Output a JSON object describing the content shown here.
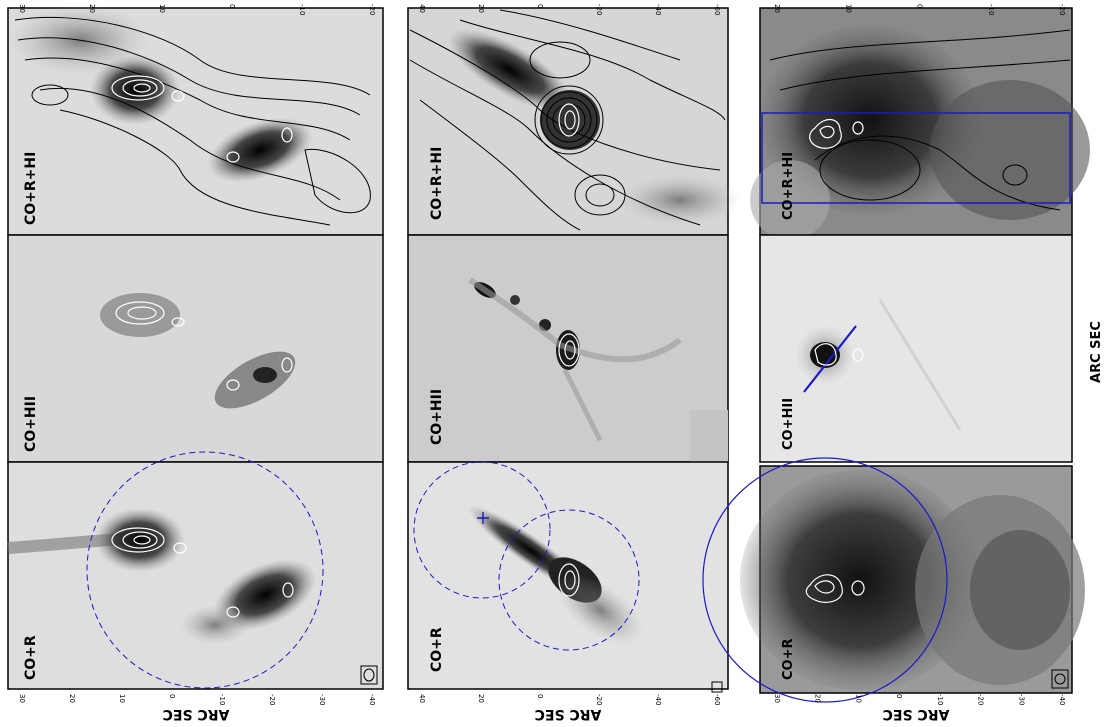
{
  "axis_label_bottom": "ARC SEC",
  "axis_label_right": "ARC SEC",
  "columns": [
    {
      "panels": [
        {
          "label": "CO+R+HI",
          "style": "light"
        },
        {
          "label": "CO+HII",
          "style": "flat"
        },
        {
          "label": "CO+R",
          "style": "light"
        }
      ],
      "ticks_top": [
        "-20",
        "-10",
        "0",
        "10",
        "20",
        "30"
      ],
      "ticks_bottom": [
        "-40",
        "-30",
        "-20",
        "-10",
        "0",
        "10",
        "20",
        "30"
      ]
    },
    {
      "panels": [
        {
          "label": "CO+R+HI",
          "style": "light"
        },
        {
          "label": "CO+HII",
          "style": "flat"
        },
        {
          "label": "CO+R",
          "style": "light"
        }
      ],
      "ticks_top": [
        "-60",
        "-40",
        "-20",
        "0",
        "20",
        "40"
      ],
      "ticks_bottom": [
        "-60",
        "-40",
        "-20",
        "0",
        "20",
        "40"
      ]
    },
    {
      "panels": [
        {
          "label": "CO+R+HI",
          "style": "dark"
        },
        {
          "label": "CO+HII",
          "style": "flat"
        },
        {
          "label": "CO+R",
          "style": "dark"
        }
      ],
      "ticks_top": [
        "-20",
        "-10",
        "0",
        "10",
        "20"
      ],
      "ticks_bottom": [
        "-40",
        "-30",
        "-20",
        "-10",
        "0",
        "10",
        "20",
        "30"
      ]
    }
  ],
  "colors": {
    "overlay": "#1a1acc",
    "contour": "#000000",
    "co_contour": "#ffffff"
  }
}
